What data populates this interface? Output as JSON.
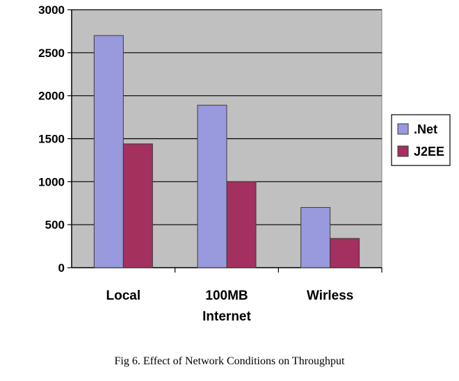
{
  "caption": "Fig  6.  Effect of Network Conditions on Throughput",
  "chart_data": {
    "type": "bar",
    "categories": [
      [
        "Local"
      ],
      [
        "100MB",
        "Internet"
      ],
      [
        "Wirless"
      ]
    ],
    "series": [
      {
        "name": ".Net",
        "color": "#9999dd",
        "values": [
          2700,
          1890,
          700
        ]
      },
      {
        "name": "J2EE",
        "color": "#a3305f",
        "values": [
          1440,
          1000,
          340
        ]
      }
    ],
    "yticks": [
      "0",
      "500",
      "1000",
      "1500",
      "2000",
      "2500",
      "3000"
    ],
    "ylim": [
      0,
      3000
    ],
    "grid": true,
    "legend": "right",
    "plot_background": "#c0c0c0"
  }
}
